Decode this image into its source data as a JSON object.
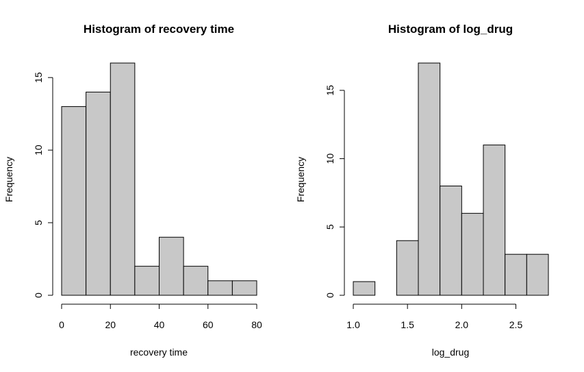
{
  "chart_data": [
    {
      "type": "bar",
      "title": "Histogram of recovery time",
      "xlabel": "recovery time",
      "ylabel": "Frequency",
      "bins": [
        [
          0,
          10
        ],
        [
          10,
          20
        ],
        [
          20,
          30
        ],
        [
          30,
          40
        ],
        [
          40,
          50
        ],
        [
          50,
          60
        ],
        [
          60,
          70
        ],
        [
          70,
          80
        ]
      ],
      "values": [
        13,
        14,
        16,
        2,
        4,
        2,
        1,
        1
      ],
      "xlim": [
        0,
        80
      ],
      "ylim": [
        0,
        16
      ],
      "xticks": [
        0,
        20,
        40,
        60,
        80
      ],
      "yticks": [
        0,
        5,
        10,
        15
      ],
      "xtick_labels": [
        "0",
        "20",
        "40",
        "60",
        "80"
      ],
      "ytick_labels": [
        "0",
        "5",
        "10",
        "15"
      ],
      "bar_color": "#c8c8c8",
      "grid": false
    },
    {
      "type": "bar",
      "title": "Histogram of log_drug",
      "xlabel": "log_drug",
      "ylabel": "Frequency",
      "bins": [
        [
          1.0,
          1.2
        ],
        [
          1.2,
          1.4
        ],
        [
          1.4,
          1.6
        ],
        [
          1.6,
          1.8
        ],
        [
          1.8,
          2.0
        ],
        [
          2.0,
          2.2
        ],
        [
          2.2,
          2.4
        ],
        [
          2.4,
          2.6
        ],
        [
          2.6,
          2.8
        ]
      ],
      "values": [
        1,
        0,
        4,
        17,
        8,
        6,
        11,
        3,
        3
      ],
      "xlim": [
        1.0,
        2.8
      ],
      "ylim": [
        0,
        17
      ],
      "xticks": [
        1.0,
        1.5,
        2.0,
        2.5
      ],
      "yticks": [
        0,
        5,
        10,
        15
      ],
      "xtick_labels": [
        "1.0",
        "1.5",
        "2.0",
        "2.5"
      ],
      "ytick_labels": [
        "0",
        "5",
        "10",
        "15"
      ],
      "bar_color": "#c8c8c8",
      "grid": false
    }
  ]
}
